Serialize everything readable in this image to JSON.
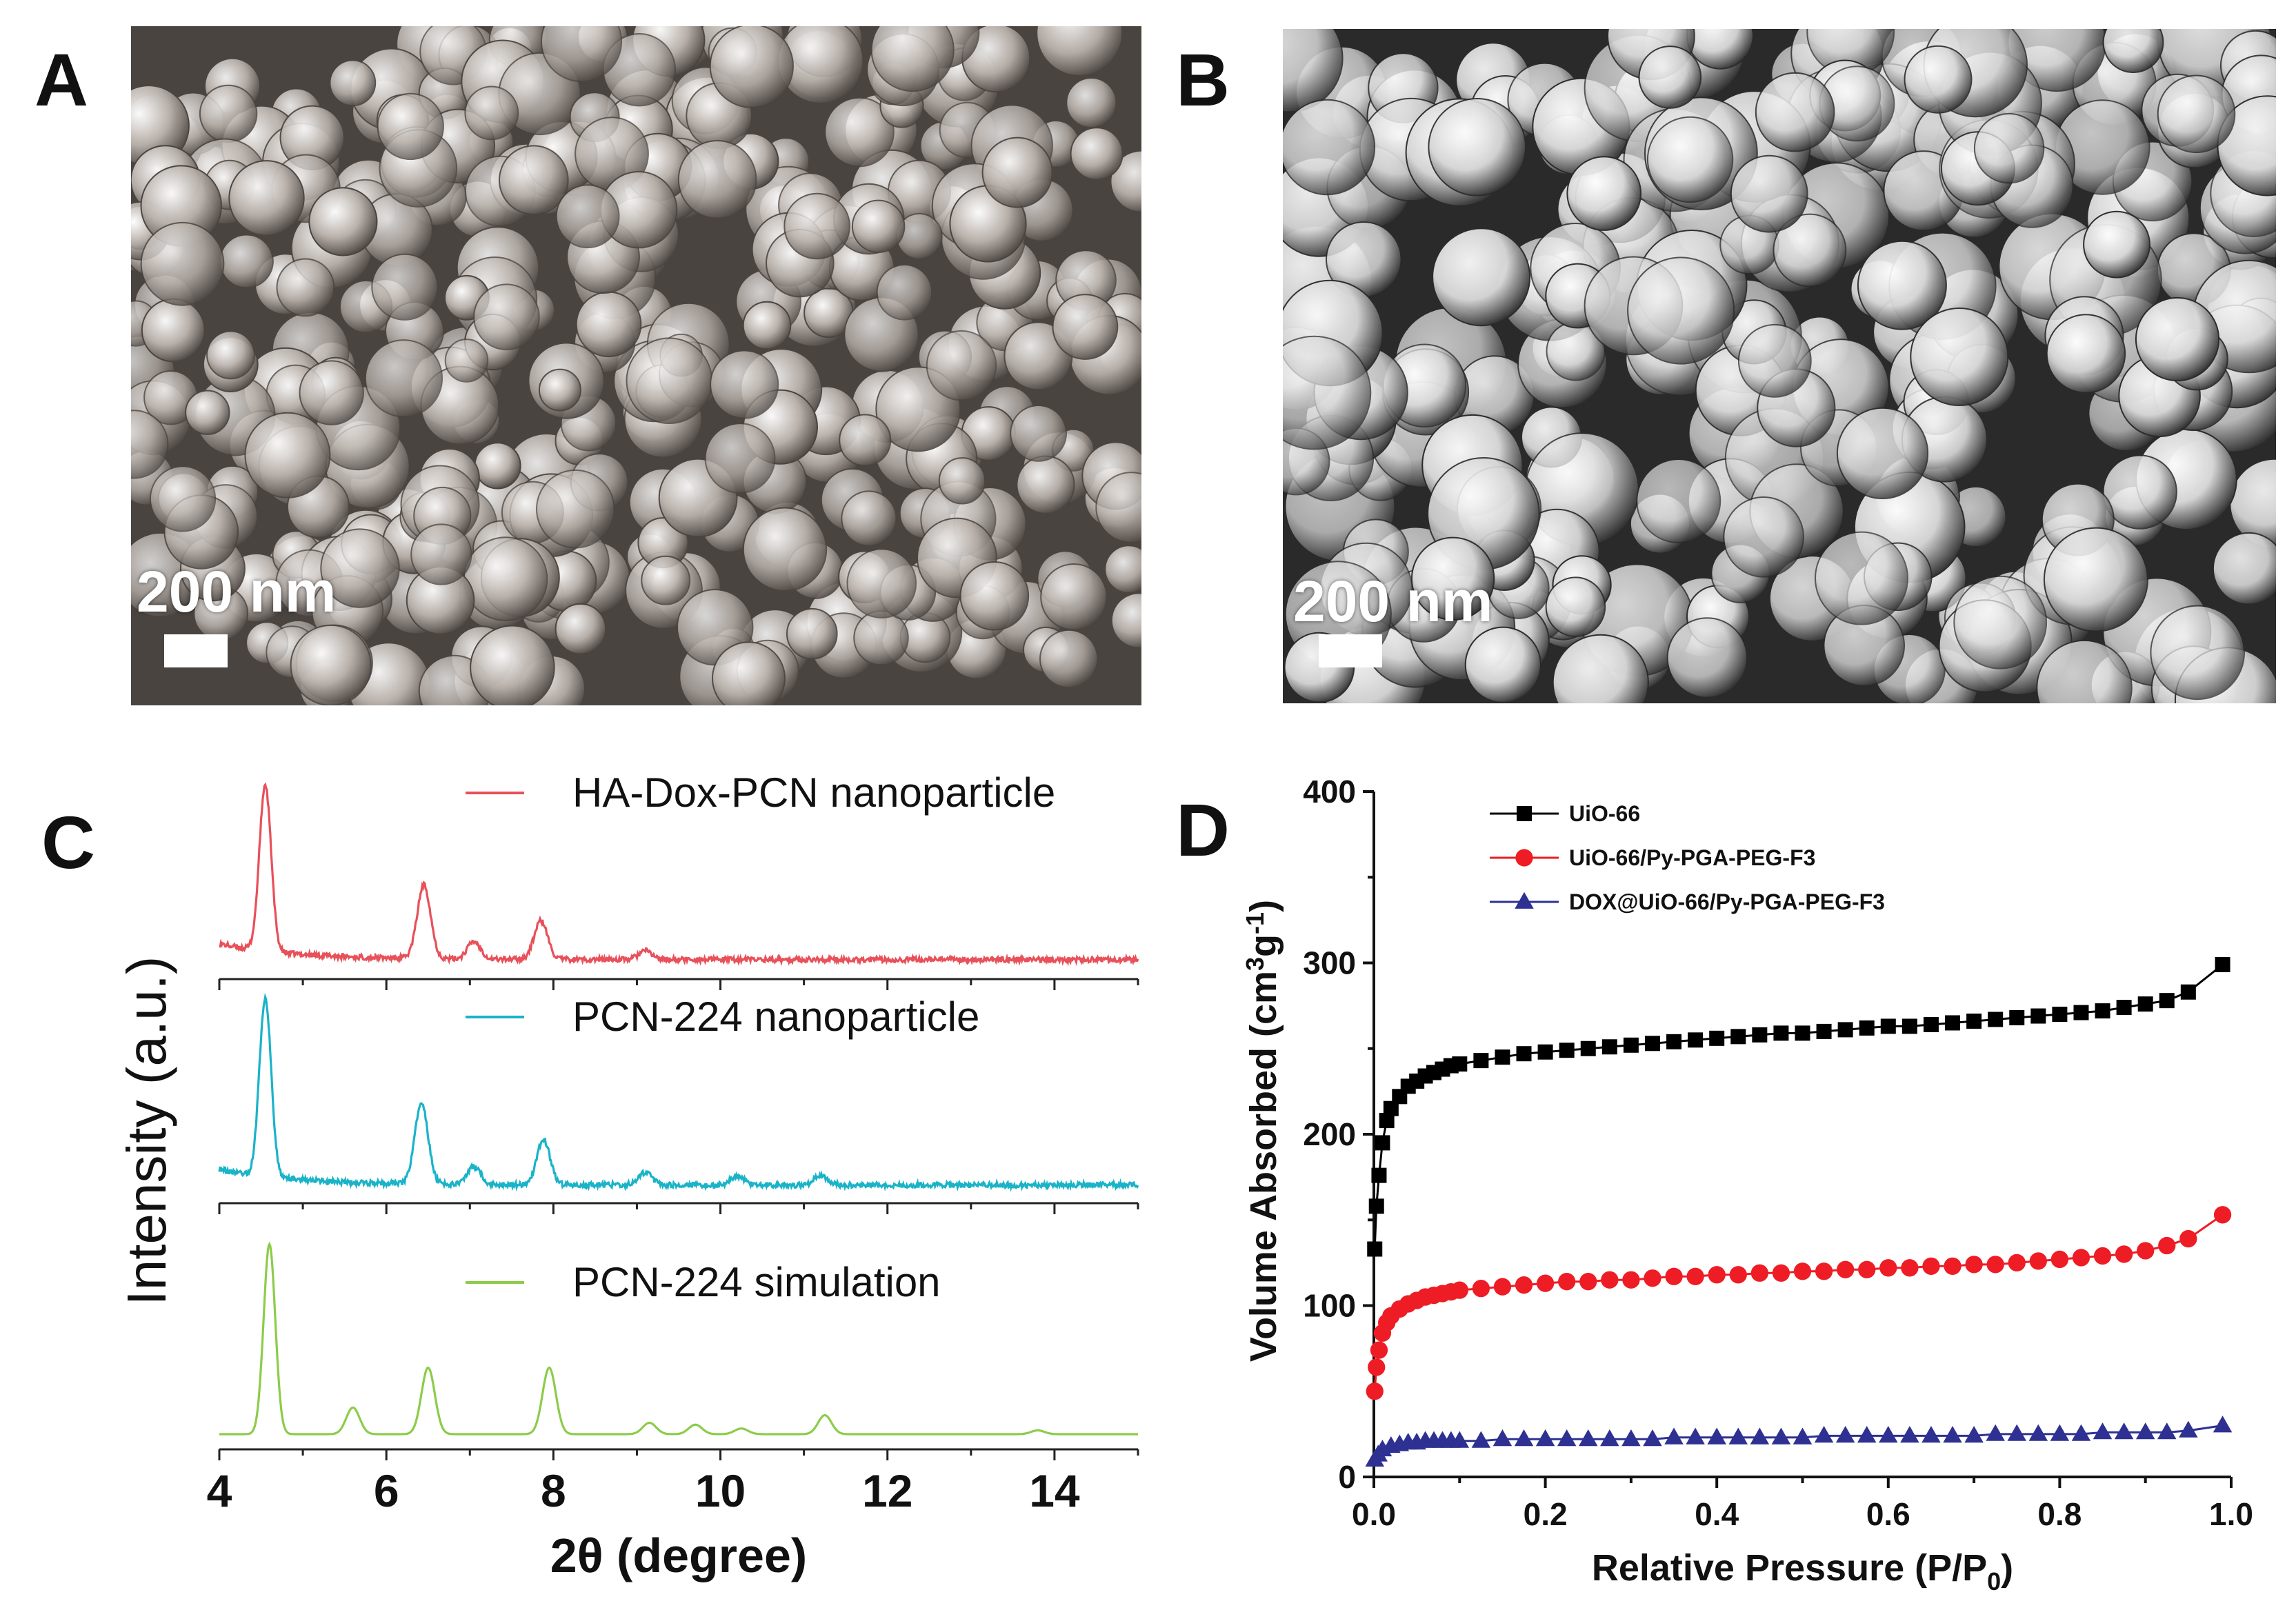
{
  "panels": {
    "A": {
      "letter": "A",
      "scale_label": "200 nm"
    },
    "B": {
      "letter": "B",
      "scale_label": "200 nm"
    },
    "C": {
      "letter": "C"
    },
    "D": {
      "letter": "D"
    }
  },
  "colors": {
    "sem_a_bg": "#4a4440",
    "sem_a_particle": "#b8b0aa",
    "sem_b_bg": "#2a2a2a",
    "sem_b_particle": "#d6d6d6",
    "xrd_ha": "#e8505a",
    "xrd_pcn": "#1ab3c8",
    "xrd_sim": "#8ccc4a",
    "uio": "#000000",
    "uio_py": "#ee1c24",
    "dox": "#2e3192"
  },
  "chart_data": [
    {
      "type": "line",
      "panel": "C",
      "title": "",
      "xlabel": "2θ (degree)",
      "ylabel": "Intensity (a.u.)",
      "xlim": [
        4,
        15
      ],
      "xticks": [
        "4",
        "6",
        "8",
        "10",
        "12",
        "14"
      ],
      "series": [
        {
          "name": "HA-Dox-PCN nanoparticle",
          "color_key": "xrd_ha",
          "baseline": 0.12,
          "peaks": [
            {
              "x": 4.55,
              "h": 0.95
            },
            {
              "x": 6.45,
              "h": 0.42
            },
            {
              "x": 7.05,
              "h": 0.1
            },
            {
              "x": 7.85,
              "h": 0.22
            },
            {
              "x": 9.1,
              "h": 0.05
            }
          ]
        },
        {
          "name": "PCN-224 nanoparticle",
          "color_key": "xrd_pcn",
          "baseline": 0.08,
          "peaks": [
            {
              "x": 4.55,
              "h": 1.0
            },
            {
              "x": 6.42,
              "h": 0.45
            },
            {
              "x": 7.05,
              "h": 0.1
            },
            {
              "x": 7.88,
              "h": 0.25
            },
            {
              "x": 9.1,
              "h": 0.07
            },
            {
              "x": 10.2,
              "h": 0.05
            },
            {
              "x": 11.2,
              "h": 0.05
            }
          ]
        },
        {
          "name": "PCN-224 simulation",
          "color_key": "xrd_sim",
          "baseline": 0.0,
          "peaks": [
            {
              "x": 4.6,
              "h": 1.0
            },
            {
              "x": 5.6,
              "h": 0.14
            },
            {
              "x": 6.5,
              "h": 0.35
            },
            {
              "x": 7.95,
              "h": 0.35
            },
            {
              "x": 9.15,
              "h": 0.06
            },
            {
              "x": 9.7,
              "h": 0.05
            },
            {
              "x": 10.25,
              "h": 0.03
            },
            {
              "x": 11.25,
              "h": 0.1
            },
            {
              "x": 13.8,
              "h": 0.02
            }
          ]
        }
      ]
    },
    {
      "type": "line",
      "panel": "D",
      "title": "",
      "xlabel": "Relative Pressure (P/P",
      "xlabel_sub": "0",
      "xlabel_end": ")",
      "ylabel": "Volume Absorbed (cm",
      "ylabel_sup1": "3",
      "ylabel_mid": "g",
      "ylabel_sup2": "-1",
      "ylabel_end": ")",
      "xlim": [
        0.0,
        1.0
      ],
      "ylim": [
        0,
        400
      ],
      "xticks": [
        "0.0",
        "0.2",
        "0.4",
        "0.6",
        "0.8",
        "1.0"
      ],
      "yticks": [
        "0",
        "100",
        "200",
        "300",
        "400"
      ],
      "legend_position": "top-left",
      "series": [
        {
          "name": "UiO-66",
          "marker": "square",
          "color_key": "uio",
          "x": [
            0.001,
            0.003,
            0.006,
            0.01,
            0.015,
            0.02,
            0.03,
            0.04,
            0.05,
            0.06,
            0.07,
            0.08,
            0.09,
            0.1,
            0.125,
            0.15,
            0.175,
            0.2,
            0.225,
            0.25,
            0.275,
            0.3,
            0.325,
            0.35,
            0.375,
            0.4,
            0.425,
            0.45,
            0.475,
            0.5,
            0.525,
            0.55,
            0.575,
            0.6,
            0.625,
            0.65,
            0.675,
            0.7,
            0.725,
            0.75,
            0.775,
            0.8,
            0.825,
            0.85,
            0.875,
            0.9,
            0.925,
            0.95,
            0.99
          ],
          "y": [
            133,
            158,
            176,
            195,
            208,
            215,
            222,
            228,
            231,
            234,
            236,
            238,
            240,
            241,
            243,
            245,
            247,
            248,
            249,
            250,
            251,
            252,
            253,
            254,
            255,
            256,
            257,
            258,
            259,
            259,
            260,
            261,
            262,
            263,
            263,
            264,
            265,
            266,
            267,
            268,
            269,
            270,
            271,
            272,
            274,
            276,
            278,
            283,
            299
          ]
        },
        {
          "name": "UiO-66/Py-PGA-PEG-F3",
          "marker": "circle",
          "color_key": "uio_py",
          "x": [
            0.001,
            0.003,
            0.006,
            0.01,
            0.015,
            0.02,
            0.03,
            0.04,
            0.05,
            0.06,
            0.07,
            0.08,
            0.09,
            0.1,
            0.125,
            0.15,
            0.175,
            0.2,
            0.225,
            0.25,
            0.275,
            0.3,
            0.325,
            0.35,
            0.375,
            0.4,
            0.425,
            0.45,
            0.475,
            0.5,
            0.525,
            0.55,
            0.575,
            0.6,
            0.625,
            0.65,
            0.675,
            0.7,
            0.725,
            0.75,
            0.775,
            0.8,
            0.825,
            0.85,
            0.875,
            0.9,
            0.925,
            0.95,
            0.99
          ],
          "y": [
            50,
            64,
            74,
            84,
            90,
            94,
            98,
            101,
            103,
            105,
            106,
            107,
            108,
            109,
            110,
            111,
            112,
            113,
            114,
            114,
            115,
            115,
            116,
            117,
            117,
            118,
            118,
            119,
            119,
            120,
            120,
            121,
            121,
            122,
            122,
            123,
            123,
            124,
            124,
            125,
            126,
            127,
            128,
            129,
            130,
            132,
            135,
            139,
            153
          ]
        },
        {
          "name": "DOX@UiO-66/Py-PGA-PEG-F3",
          "marker": "triangle",
          "color_key": "dox",
          "x": [
            0.001,
            0.005,
            0.01,
            0.02,
            0.03,
            0.04,
            0.05,
            0.06,
            0.07,
            0.08,
            0.09,
            0.1,
            0.125,
            0.15,
            0.175,
            0.2,
            0.225,
            0.25,
            0.275,
            0.3,
            0.325,
            0.35,
            0.375,
            0.4,
            0.425,
            0.45,
            0.475,
            0.5,
            0.525,
            0.55,
            0.575,
            0.6,
            0.625,
            0.65,
            0.675,
            0.7,
            0.725,
            0.75,
            0.775,
            0.8,
            0.825,
            0.85,
            0.875,
            0.9,
            0.925,
            0.95,
            0.99
          ],
          "y": [
            10,
            13,
            16,
            18,
            19,
            20,
            20,
            21,
            21,
            21,
            21,
            21,
            21,
            22,
            22,
            22,
            22,
            22,
            22,
            22,
            22,
            23,
            23,
            23,
            23,
            23,
            23,
            23,
            24,
            24,
            24,
            24,
            24,
            24,
            24,
            24,
            25,
            25,
            25,
            25,
            25,
            26,
            26,
            26,
            26,
            27,
            30
          ]
        }
      ]
    }
  ]
}
